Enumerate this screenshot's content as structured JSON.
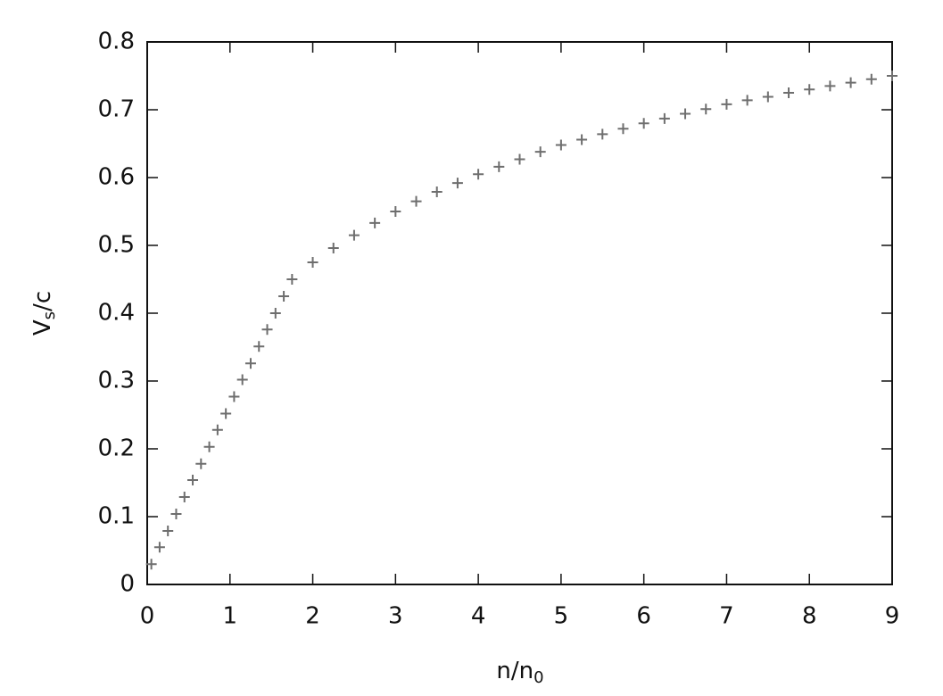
{
  "chart_data": {
    "type": "scatter",
    "marker": "plus",
    "xlabel": {
      "text": "n/n",
      "subscript": "0"
    },
    "ylabel": {
      "text": "V",
      "subscript": "s",
      "suffix": "/c"
    },
    "xlim": [
      0,
      9
    ],
    "xticks": [
      0,
      1,
      2,
      3,
      4,
      5,
      6,
      7,
      8,
      9
    ],
    "ylim": [
      0,
      0.8
    ],
    "yticks": [
      0,
      0.1,
      0.2,
      0.3,
      0.4,
      0.5,
      0.6,
      0.7,
      0.8
    ],
    "grid": false,
    "series": [
      {
        "color": "#6e6e6e",
        "x": [
          0.05,
          0.15,
          0.25,
          0.35,
          0.45,
          0.55,
          0.65,
          0.75,
          0.85,
          0.95,
          1.05,
          1.15,
          1.25,
          1.35,
          1.45,
          1.55,
          1.65,
          1.75,
          2.0,
          2.25,
          2.5,
          2.75,
          3.0,
          3.25,
          3.5,
          3.75,
          4.0,
          4.25,
          4.5,
          4.75,
          5.0,
          5.25,
          5.5,
          5.75,
          6.0,
          6.25,
          6.5,
          6.75,
          7.0,
          7.25,
          7.5,
          7.75,
          8.0,
          8.25,
          8.5,
          8.75,
          9.0
        ],
        "values": [
          0.03,
          0.055,
          0.079,
          0.104,
          0.129,
          0.154,
          0.178,
          0.203,
          0.228,
          0.252,
          0.277,
          0.302,
          0.326,
          0.351,
          0.376,
          0.4,
          0.425,
          0.45,
          0.475,
          0.496,
          0.515,
          0.533,
          0.55,
          0.565,
          0.579,
          0.592,
          0.605,
          0.616,
          0.627,
          0.638,
          0.648,
          0.656,
          0.664,
          0.672,
          0.68,
          0.687,
          0.694,
          0.701,
          0.708,
          0.714,
          0.719,
          0.725,
          0.73,
          0.735,
          0.74,
          0.745,
          0.75
        ]
      }
    ]
  }
}
